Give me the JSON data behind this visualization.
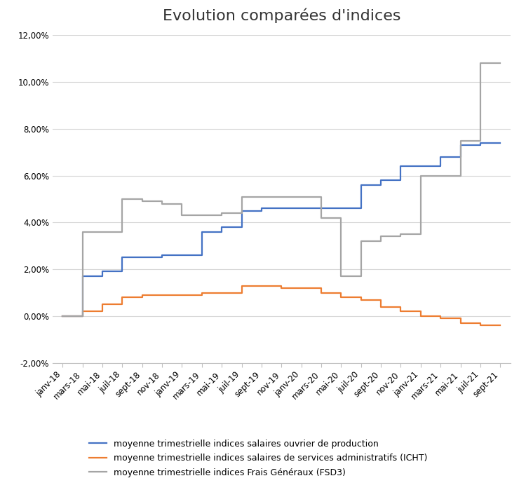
{
  "title": "Evolution comparées d'indices",
  "ylim": [
    -0.02,
    0.12
  ],
  "yticks": [
    -0.02,
    0.0,
    0.02,
    0.04,
    0.06,
    0.08,
    0.1,
    0.12
  ],
  "ytick_labels": [
    "-2,00%",
    "0,00%",
    "2,00%",
    "4,00%",
    "6,00%",
    "8,00%",
    "10,00%",
    "12,00%"
  ],
  "x_labels": [
    "janv-18",
    "mars-18",
    "mai-18",
    "juil-18",
    "sept-18",
    "nov-18",
    "janv-19",
    "mars-19",
    "mai-19",
    "juil-19",
    "sept-19",
    "nov-19",
    "janv-20",
    "mars-20",
    "mai-20",
    "juil-20",
    "sept-20",
    "nov-20",
    "janv-21",
    "mars-21",
    "mai-21",
    "juil-21",
    "sept-21"
  ],
  "blue_label": "moyenne trimestrielle indices salaires ouvrier de production",
  "orange_label": "moyenne trimestrielle indices salaires de services administratifs (ICHT)",
  "grey_label": "moyenne trimestrielle indices Frais Généraux (FSD3)",
  "blue_color": "#4472C4",
  "orange_color": "#ED7D31",
  "grey_color": "#A5A5A5",
  "blue_values": [
    0.0,
    0.017,
    0.019,
    0.025,
    0.025,
    0.026,
    0.026,
    0.036,
    0.038,
    0.045,
    0.046,
    0.046,
    0.046,
    0.046,
    0.046,
    0.056,
    0.058,
    0.064,
    0.064,
    0.068,
    0.073,
    0.074,
    0.074
  ],
  "orange_values": [
    0.0,
    0.002,
    0.005,
    0.008,
    0.009,
    0.009,
    0.009,
    0.01,
    0.01,
    0.013,
    0.013,
    0.012,
    0.012,
    0.01,
    0.008,
    0.007,
    0.004,
    0.002,
    0.0,
    -0.001,
    -0.003,
    -0.004,
    -0.004
  ],
  "grey_values": [
    0.0,
    0.036,
    0.036,
    0.05,
    0.049,
    0.048,
    0.043,
    0.043,
    0.044,
    0.051,
    0.051,
    0.051,
    0.051,
    0.042,
    0.017,
    0.032,
    0.034,
    0.035,
    0.06,
    0.06,
    0.075,
    0.108,
    0.108
  ],
  "background_color": "#ffffff",
  "title_fontsize": 16,
  "legend_fontsize": 9,
  "tick_fontsize": 8.5,
  "line_width": 1.6,
  "grid_color": "#d8d8d8",
  "spine_color": "#c0c0c0"
}
